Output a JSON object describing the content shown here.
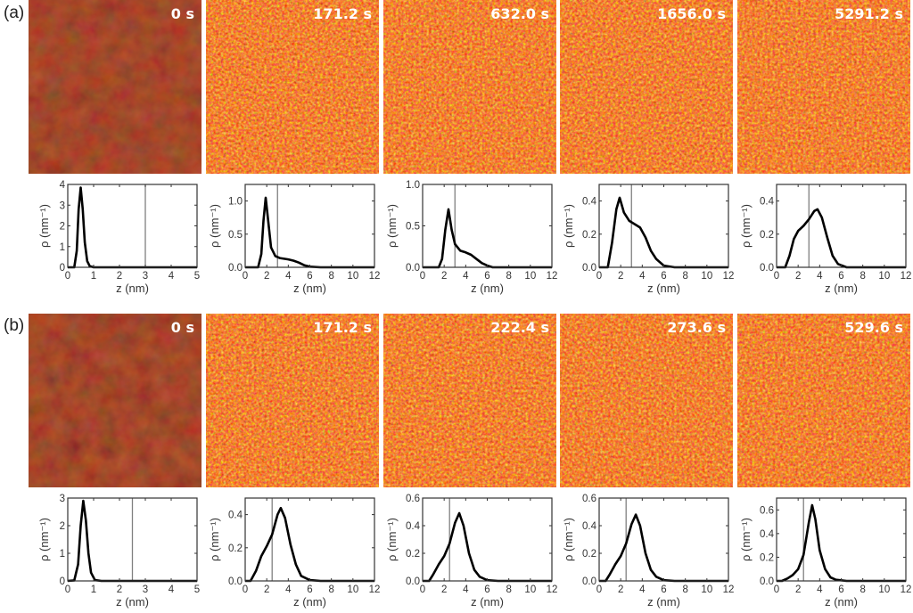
{
  "rows": [
    {
      "label": "(a)",
      "images": [
        {
          "time": "0 s",
          "brightness": "dark"
        },
        {
          "time": "171.2 s",
          "brightness": "bright"
        },
        {
          "time": "632.0 s",
          "brightness": "bright"
        },
        {
          "time": "1656.0 s",
          "brightness": "bright"
        },
        {
          "time": "5291.2 s",
          "brightness": "bright"
        }
      ]
    },
    {
      "label": "(b)",
      "images": [
        {
          "time": "0 s",
          "brightness": "dark"
        },
        {
          "time": "171.2 s",
          "brightness": "bright"
        },
        {
          "time": "222.4 s",
          "brightness": "bright"
        },
        {
          "time": "273.6 s",
          "brightness": "bright"
        },
        {
          "time": "529.6 s",
          "brightness": "bright"
        }
      ]
    }
  ],
  "colors": {
    "curve": "#000000",
    "marker_line": "#808080",
    "afm_dark": "#5a0f06",
    "afm_bright": "#e0300e",
    "afm_highlight": "#ffe040"
  },
  "chart_data": [
    {
      "type": "line",
      "row": "(a)",
      "time": "0 s",
      "xlabel": "z (nm)",
      "ylabel": "ρ (nm⁻¹)",
      "xlim": [
        0,
        5
      ],
      "ylim": [
        0,
        4
      ],
      "xticks": [
        "0",
        "1",
        "2",
        "3",
        "4",
        "5"
      ],
      "yticks": [
        "0",
        "1",
        "2",
        "3",
        "4"
      ],
      "vline": 3,
      "points": [
        [
          0,
          0
        ],
        [
          0.25,
          0
        ],
        [
          0.35,
          0.8
        ],
        [
          0.42,
          2.8
        ],
        [
          0.5,
          3.85
        ],
        [
          0.58,
          2.8
        ],
        [
          0.66,
          1.2
        ],
        [
          0.75,
          0.3
        ],
        [
          0.85,
          0.05
        ],
        [
          1,
          0
        ],
        [
          5,
          0
        ]
      ]
    },
    {
      "type": "line",
      "row": "(a)",
      "time": "171.2 s",
      "xlabel": "z (nm)",
      "ylabel": "ρ (nm⁻¹)",
      "xlim": [
        0,
        12
      ],
      "ylim": [
        0,
        1.25
      ],
      "xticks": [
        "0",
        "2",
        "4",
        "6",
        "8",
        "10",
        "12"
      ],
      "yticks": [
        "0.0",
        "0.5",
        "1.0"
      ],
      "vline": 3,
      "points": [
        [
          0,
          0
        ],
        [
          1.2,
          0
        ],
        [
          1.5,
          0.2
        ],
        [
          1.7,
          0.7
        ],
        [
          1.9,
          1.05
        ],
        [
          2.1,
          0.75
        ],
        [
          2.4,
          0.3
        ],
        [
          2.8,
          0.17
        ],
        [
          3.2,
          0.14
        ],
        [
          4,
          0.12
        ],
        [
          4.5,
          0.1
        ],
        [
          5,
          0.07
        ],
        [
          5.5,
          0.03
        ],
        [
          6,
          0.01
        ],
        [
          7,
          0
        ],
        [
          12,
          0
        ]
      ]
    },
    {
      "type": "line",
      "row": "(a)",
      "time": "632.0 s",
      "xlabel": "z (nm)",
      "ylabel": "ρ (nm⁻¹)",
      "xlim": [
        0,
        12
      ],
      "ylim": [
        0,
        1
      ],
      "xticks": [
        "0",
        "2",
        "4",
        "6",
        "8",
        "10",
        "12"
      ],
      "yticks": [
        "0.0",
        "0.5",
        "1.0"
      ],
      "vline": 3,
      "points": [
        [
          0,
          0
        ],
        [
          1.5,
          0
        ],
        [
          1.8,
          0.1
        ],
        [
          2.1,
          0.45
        ],
        [
          2.4,
          0.7
        ],
        [
          2.7,
          0.45
        ],
        [
          3,
          0.28
        ],
        [
          3.5,
          0.2
        ],
        [
          4,
          0.18
        ],
        [
          4.5,
          0.15
        ],
        [
          5,
          0.1
        ],
        [
          5.5,
          0.05
        ],
        [
          6,
          0.02
        ],
        [
          6.5,
          0
        ],
        [
          12,
          0
        ]
      ]
    },
    {
      "type": "line",
      "row": "(a)",
      "time": "1656.0 s",
      "xlabel": "z (nm)",
      "ylabel": "ρ (nm⁻¹)",
      "xlim": [
        0,
        12
      ],
      "ylim": [
        0,
        0.5
      ],
      "xticks": [
        "0",
        "2",
        "4",
        "6",
        "8",
        "10",
        "12"
      ],
      "yticks": [
        "0.0",
        "0.2",
        "0.4"
      ],
      "vline": 3,
      "points": [
        [
          0,
          0
        ],
        [
          0.8,
          0
        ],
        [
          1.2,
          0.15
        ],
        [
          1.6,
          0.35
        ],
        [
          1.9,
          0.42
        ],
        [
          2.3,
          0.33
        ],
        [
          2.8,
          0.28
        ],
        [
          3.3,
          0.26
        ],
        [
          3.8,
          0.24
        ],
        [
          4.3,
          0.18
        ],
        [
          4.8,
          0.1
        ],
        [
          5.3,
          0.05
        ],
        [
          6,
          0.01
        ],
        [
          7,
          0
        ],
        [
          12,
          0
        ]
      ]
    },
    {
      "type": "line",
      "row": "(a)",
      "time": "5291.2 s",
      "xlabel": "z (nm)",
      "ylabel": "ρ (nm⁻¹)",
      "xlim": [
        0,
        12
      ],
      "ylim": [
        0,
        0.5
      ],
      "xticks": [
        "0",
        "2",
        "4",
        "6",
        "8",
        "10",
        "12"
      ],
      "yticks": [
        "0.0",
        "0.2",
        "0.4"
      ],
      "vline": 3,
      "points": [
        [
          0,
          0
        ],
        [
          0.8,
          0
        ],
        [
          1.2,
          0.07
        ],
        [
          1.6,
          0.17
        ],
        [
          2,
          0.22
        ],
        [
          2.5,
          0.25
        ],
        [
          3,
          0.29
        ],
        [
          3.5,
          0.34
        ],
        [
          3.8,
          0.35
        ],
        [
          4.2,
          0.3
        ],
        [
          4.7,
          0.18
        ],
        [
          5.2,
          0.07
        ],
        [
          5.7,
          0.02
        ],
        [
          6.5,
          0
        ],
        [
          12,
          0
        ]
      ]
    },
    {
      "type": "line",
      "row": "(b)",
      "time": "0 s",
      "xlabel": "z (nm)",
      "ylabel": "ρ (nm⁻¹)",
      "xlim": [
        0,
        5
      ],
      "ylim": [
        0,
        3
      ],
      "xticks": [
        "0",
        "1",
        "2",
        "3",
        "4",
        "5"
      ],
      "yticks": [
        "0",
        "1",
        "2",
        "3"
      ],
      "vline": 2.5,
      "points": [
        [
          0,
          0
        ],
        [
          0.25,
          0.02
        ],
        [
          0.4,
          0.6
        ],
        [
          0.5,
          2
        ],
        [
          0.6,
          2.9
        ],
        [
          0.7,
          2.2
        ],
        [
          0.8,
          1
        ],
        [
          0.9,
          0.3
        ],
        [
          1.05,
          0.03
        ],
        [
          1.3,
          0
        ],
        [
          5,
          0
        ]
      ]
    },
    {
      "type": "line",
      "row": "(b)",
      "time": "171.2 s",
      "xlabel": "z (nm)",
      "ylabel": "ρ (nm⁻¹)",
      "xlim": [
        0,
        12
      ],
      "ylim": [
        0,
        0.5
      ],
      "xticks": [
        "0",
        "2",
        "4",
        "6",
        "8",
        "10",
        "12"
      ],
      "yticks": [
        "0.0",
        "0.2",
        "0.4"
      ],
      "vline": 2.5,
      "points": [
        [
          0,
          0
        ],
        [
          0.5,
          0
        ],
        [
          1,
          0.06
        ],
        [
          1.5,
          0.15
        ],
        [
          2,
          0.21
        ],
        [
          2.5,
          0.28
        ],
        [
          3,
          0.4
        ],
        [
          3.3,
          0.44
        ],
        [
          3.7,
          0.38
        ],
        [
          4.2,
          0.22
        ],
        [
          4.7,
          0.1
        ],
        [
          5.2,
          0.03
        ],
        [
          6,
          0.005
        ],
        [
          7,
          0
        ],
        [
          12,
          0
        ]
      ]
    },
    {
      "type": "line",
      "row": "(b)",
      "time": "222.4 s",
      "xlabel": "z (nm)",
      "ylabel": "ρ (nm⁻¹)",
      "xlim": [
        0,
        12
      ],
      "ylim": [
        0,
        0.6
      ],
      "xticks": [
        "0",
        "2",
        "4",
        "6",
        "8",
        "10",
        "12"
      ],
      "yticks": [
        "0.0",
        "0.2",
        "0.4",
        "0.6"
      ],
      "vline": 2.5,
      "points": [
        [
          0,
          0
        ],
        [
          0.6,
          0
        ],
        [
          1,
          0.05
        ],
        [
          1.5,
          0.12
        ],
        [
          2,
          0.18
        ],
        [
          2.5,
          0.27
        ],
        [
          3,
          0.42
        ],
        [
          3.4,
          0.49
        ],
        [
          3.8,
          0.4
        ],
        [
          4.3,
          0.2
        ],
        [
          4.8,
          0.08
        ],
        [
          5.3,
          0.03
        ],
        [
          6,
          0.005
        ],
        [
          7,
          0
        ],
        [
          12,
          0
        ]
      ]
    },
    {
      "type": "line",
      "row": "(b)",
      "time": "273.6 s",
      "xlabel": "z (nm)",
      "ylabel": "ρ (nm⁻¹)",
      "xlim": [
        0,
        12
      ],
      "ylim": [
        0,
        0.6
      ],
      "xticks": [
        "0",
        "2",
        "4",
        "6",
        "8",
        "10",
        "12"
      ],
      "yticks": [
        "0.0",
        "0.2",
        "0.4",
        "0.6"
      ],
      "vline": 2.5,
      "points": [
        [
          0,
          0
        ],
        [
          0.6,
          0
        ],
        [
          1,
          0.05
        ],
        [
          1.5,
          0.12
        ],
        [
          2,
          0.18
        ],
        [
          2.5,
          0.27
        ],
        [
          3,
          0.41
        ],
        [
          3.4,
          0.48
        ],
        [
          3.8,
          0.4
        ],
        [
          4.3,
          0.2
        ],
        [
          4.8,
          0.08
        ],
        [
          5.3,
          0.03
        ],
        [
          6,
          0.005
        ],
        [
          7,
          0
        ],
        [
          12,
          0
        ]
      ]
    },
    {
      "type": "line",
      "row": "(b)",
      "time": "529.6 s",
      "xlabel": "z (nm)",
      "ylabel": "ρ (nm⁻¹)",
      "xlim": [
        0,
        12
      ],
      "ylim": [
        0,
        0.7
      ],
      "xticks": [
        "0",
        "2",
        "4",
        "6",
        "8",
        "10",
        "12"
      ],
      "yticks": [
        "0.0",
        "0.2",
        "0.4",
        "0.6"
      ],
      "vline": 2.5,
      "points": [
        [
          0,
          0
        ],
        [
          0.5,
          0
        ],
        [
          1,
          0.02
        ],
        [
          1.5,
          0.05
        ],
        [
          2,
          0.1
        ],
        [
          2.5,
          0.22
        ],
        [
          3,
          0.5
        ],
        [
          3.3,
          0.64
        ],
        [
          3.6,
          0.52
        ],
        [
          4,
          0.26
        ],
        [
          4.5,
          0.1
        ],
        [
          5,
          0.03
        ],
        [
          5.5,
          0.01
        ],
        [
          6.5,
          0
        ],
        [
          12,
          0
        ]
      ]
    }
  ]
}
